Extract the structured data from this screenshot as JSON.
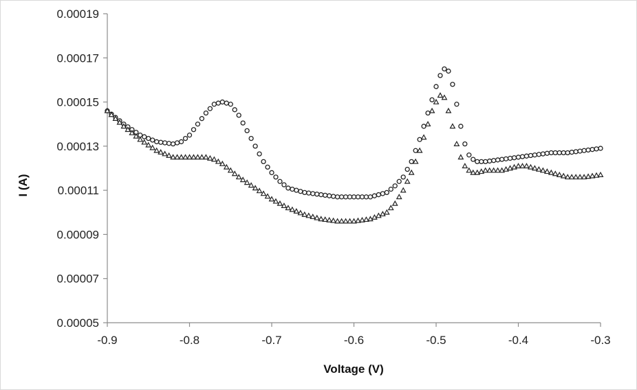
{
  "chart_data": {
    "type": "scatter",
    "title": "",
    "xlabel": "Voltage (V)",
    "ylabel": "I (A)",
    "xlim": [
      -0.9,
      -0.3
    ],
    "ylim": [
      5e-05,
      0.00019
    ],
    "xticks": [
      -0.9,
      -0.8,
      -0.7,
      -0.6,
      -0.5,
      -0.4,
      -0.3
    ],
    "xtick_labels": [
      "-0.9",
      "-0.8",
      "-0.7",
      "-0.6",
      "-0.5",
      "-0.4",
      "-0.3"
    ],
    "yticks": [
      5e-05,
      7e-05,
      9e-05,
      0.00011,
      0.00013,
      0.00015,
      0.00017,
      0.00019
    ],
    "ytick_labels": [
      "0.00005",
      "0.00007",
      "0.00009",
      "0.00011",
      "0.00013",
      "0.00015",
      "0.00017",
      "0.00019"
    ],
    "grid": false,
    "legend": "none",
    "series": [
      {
        "marker": "circle",
        "color": "#222222",
        "x": [
          -0.9,
          -0.88,
          -0.86,
          -0.84,
          -0.82,
          -0.81,
          -0.8,
          -0.79,
          -0.78,
          -0.77,
          -0.76,
          -0.75,
          -0.74,
          -0.73,
          -0.72,
          -0.71,
          -0.7,
          -0.69,
          -0.68,
          -0.67,
          -0.66,
          -0.64,
          -0.62,
          -0.6,
          -0.58,
          -0.56,
          -0.55,
          -0.54,
          -0.53,
          -0.52,
          -0.51,
          -0.5,
          -0.495,
          -0.49,
          -0.485,
          -0.48,
          -0.475,
          -0.47,
          -0.465,
          -0.46,
          -0.455,
          -0.45,
          -0.44,
          -0.42,
          -0.4,
          -0.38,
          -0.36,
          -0.34,
          -0.32,
          -0.3
        ],
        "y": [
          0.000146,
          0.00014,
          0.000135,
          0.000132,
          0.000131,
          0.000132,
          0.000135,
          0.00014,
          0.000145,
          0.000149,
          0.00015,
          0.000149,
          0.000144,
          0.000137,
          0.00013,
          0.000123,
          0.000118,
          0.000114,
          0.000111,
          0.00011,
          0.000109,
          0.000108,
          0.000107,
          0.000107,
          0.000107,
          0.000109,
          0.000112,
          0.000116,
          0.000123,
          0.000133,
          0.000145,
          0.000157,
          0.000162,
          0.000165,
          0.000164,
          0.000158,
          0.000149,
          0.000139,
          0.000131,
          0.000126,
          0.000124,
          0.000123,
          0.000123,
          0.000124,
          0.000125,
          0.000126,
          0.000127,
          0.000127,
          0.000128,
          0.000129
        ]
      },
      {
        "marker": "triangle",
        "color": "#222222",
        "x": [
          -0.9,
          -0.88,
          -0.86,
          -0.84,
          -0.82,
          -0.8,
          -0.78,
          -0.77,
          -0.76,
          -0.75,
          -0.74,
          -0.72,
          -0.7,
          -0.68,
          -0.66,
          -0.64,
          -0.62,
          -0.6,
          -0.58,
          -0.56,
          -0.55,
          -0.54,
          -0.53,
          -0.52,
          -0.51,
          -0.505,
          -0.5,
          -0.495,
          -0.49,
          -0.485,
          -0.48,
          -0.475,
          -0.47,
          -0.465,
          -0.46,
          -0.455,
          -0.45,
          -0.44,
          -0.42,
          -0.4,
          -0.39,
          -0.38,
          -0.36,
          -0.34,
          -0.32,
          -0.3
        ],
        "y": [
          0.000146,
          0.000139,
          0.000133,
          0.000128,
          0.000125,
          0.000125,
          0.000125,
          0.000124,
          0.000122,
          0.000119,
          0.000116,
          0.000111,
          0.000106,
          0.000102,
          9.9e-05,
          9.7e-05,
          9.6e-05,
          9.6e-05,
          9.7e-05,
          0.0001,
          0.000104,
          0.00011,
          0.000118,
          0.000128,
          0.00014,
          0.000146,
          0.00015,
          0.000153,
          0.000152,
          0.000146,
          0.000139,
          0.000131,
          0.000125,
          0.000121,
          0.000119,
          0.000118,
          0.000118,
          0.000119,
          0.000119,
          0.000121,
          0.000121,
          0.00012,
          0.000118,
          0.000116,
          0.000116,
          0.000117
        ]
      }
    ]
  }
}
